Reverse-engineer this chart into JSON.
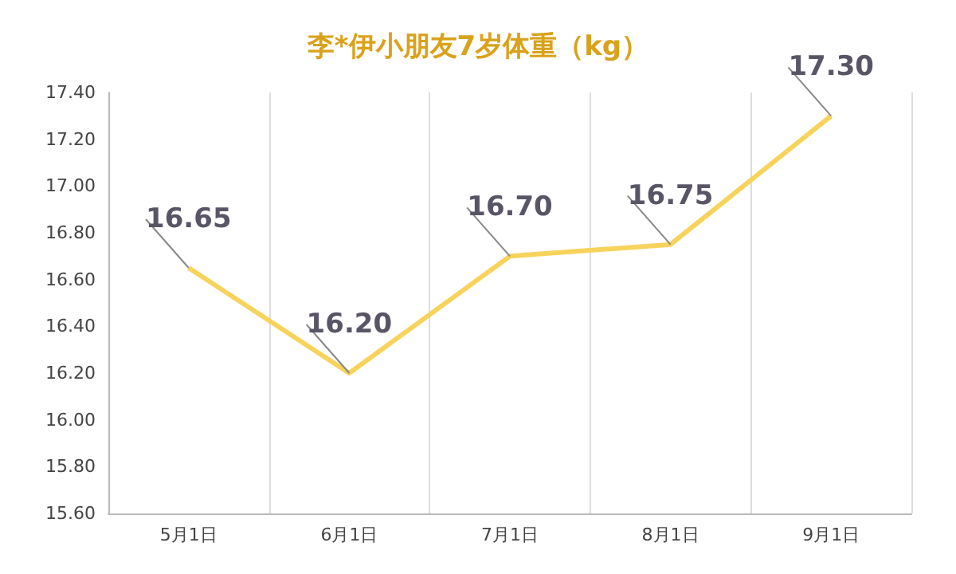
{
  "chart_data": {
    "type": "line",
    "title": "李*伊小朋友7岁体重（kg）",
    "categories": [
      "5月1日",
      "6月1日",
      "7月1日",
      "8月1日",
      "9月1日"
    ],
    "series": [
      {
        "color": "#f7d35c",
        "values": [
          16.65,
          16.2,
          16.7,
          16.75,
          17.3
        ],
        "value_labels": [
          "16.65",
          "16.20",
          "16.70",
          "16.75",
          "17.30"
        ]
      }
    ],
    "ylim": [
      15.6,
      17.4
    ],
    "yticks": [
      {
        "value": 15.6,
        "label": "15.60"
      },
      {
        "value": 15.8,
        "label": "15.80"
      },
      {
        "value": 16.0,
        "label": "16.00"
      },
      {
        "value": 16.2,
        "label": "16.20"
      },
      {
        "value": 16.4,
        "label": "16.40"
      },
      {
        "value": 16.6,
        "label": "16.60"
      },
      {
        "value": 16.8,
        "label": "16.80"
      },
      {
        "value": 17.0,
        "label": "17.00"
      },
      {
        "value": 17.2,
        "label": "17.20"
      },
      {
        "value": 17.4,
        "label": "17.40"
      }
    ],
    "grid": "x",
    "marker": "none",
    "line_style": "solid"
  }
}
